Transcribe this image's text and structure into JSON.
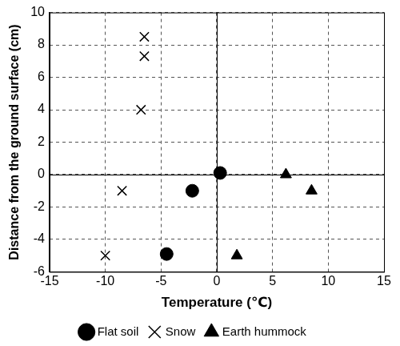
{
  "chart_data": {
    "type": "scatter",
    "x_label": "Temperature (℃)",
    "y_label": "Distance from the ground surface (cm)",
    "xlim": [
      -15,
      15
    ],
    "xticks": [
      -15,
      -10,
      -5,
      0,
      5,
      10,
      15
    ],
    "ylim": [
      -6,
      10
    ],
    "yticks": [
      -6,
      -4,
      -2,
      0,
      2,
      4,
      6,
      8,
      10
    ],
    "grid": true,
    "legend": "bottom",
    "series": [
      {
        "name": "Flat soil",
        "color": "#000000",
        "marker": "circle",
        "x": [
          0.3,
          -2.2,
          -4.5
        ],
        "values": [
          0.1,
          -1.0,
          -4.9
        ]
      },
      {
        "name": "Snow",
        "color": "#000000",
        "marker": "cross",
        "x": [
          -6.5,
          -6.5,
          -6.8,
          -8.5,
          -10.0
        ],
        "values": [
          8.5,
          7.3,
          4.0,
          -1.0,
          -5.0
        ]
      },
      {
        "name": "Earth hummock",
        "color": "#000000",
        "marker": "triangle",
        "x": [
          6.2,
          8.5,
          1.8
        ],
        "values": [
          0.0,
          -1.0,
          -5.0
        ]
      }
    ]
  }
}
